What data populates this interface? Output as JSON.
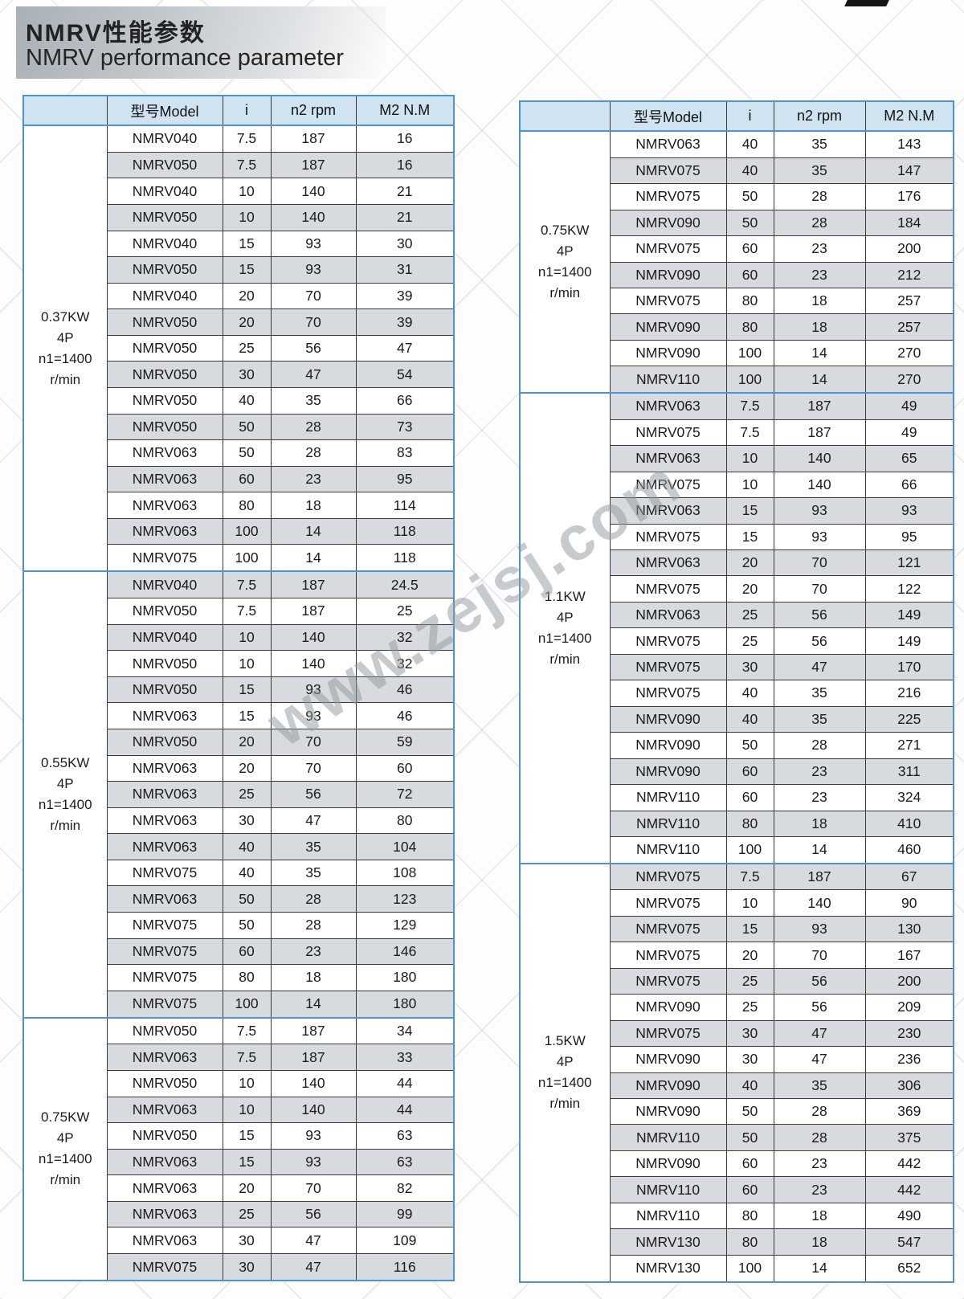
{
  "page": {
    "title_cn": "NMRV性能参数",
    "title_en": "NMRV performance parameter",
    "watermark": "www.zejsj.com"
  },
  "columns": [
    "型号Model",
    "i",
    "n2 rpm",
    "M2 N.M"
  ],
  "colors": {
    "header_bg": "#cfe3f1",
    "border_blue": "#4e92cf",
    "row_shaded": "#d7dade",
    "row_plain": "#ffffff",
    "grid_line": "#3a3a3a",
    "text": "#1b1b1b",
    "watermark_gray": "#919ba2"
  },
  "tables": [
    {
      "name": "left",
      "groups": [
        {
          "label_lines": [
            "0.37KW",
            "4P",
            "n1=1400",
            "r/min"
          ],
          "first_row_shaded": false,
          "rows": [
            [
              "NMRV040",
              "7.5",
              "187",
              "16"
            ],
            [
              "NMRV050",
              "7.5",
              "187",
              "16"
            ],
            [
              "NMRV040",
              "10",
              "140",
              "21"
            ],
            [
              "NMRV050",
              "10",
              "140",
              "21"
            ],
            [
              "NMRV040",
              "15",
              "93",
              "30"
            ],
            [
              "NMRV050",
              "15",
              "93",
              "31"
            ],
            [
              "NMRV040",
              "20",
              "70",
              "39"
            ],
            [
              "NMRV050",
              "20",
              "70",
              "39"
            ],
            [
              "NMRV050",
              "25",
              "56",
              "47"
            ],
            [
              "NMRV050",
              "30",
              "47",
              "54"
            ],
            [
              "NMRV050",
              "40",
              "35",
              "66"
            ],
            [
              "NMRV050",
              "50",
              "28",
              "73"
            ],
            [
              "NMRV063",
              "50",
              "28",
              "83"
            ],
            [
              "NMRV063",
              "60",
              "23",
              "95"
            ],
            [
              "NMRV063",
              "80",
              "18",
              "114"
            ],
            [
              "NMRV063",
              "100",
              "14",
              "118"
            ],
            [
              "NMRV075",
              "100",
              "14",
              "118"
            ]
          ]
        },
        {
          "label_lines": [
            "0.55KW",
            "4P",
            "n1=1400",
            "r/min"
          ],
          "first_row_shaded": true,
          "rows": [
            [
              "NMRV040",
              "7.5",
              "187",
              "24.5"
            ],
            [
              "NMRV050",
              "7.5",
              "187",
              "25"
            ],
            [
              "NMRV040",
              "10",
              "140",
              "32"
            ],
            [
              "NMRV050",
              "10",
              "140",
              "32"
            ],
            [
              "NMRV050",
              "15",
              "93",
              "46"
            ],
            [
              "NMRV063",
              "15",
              "93",
              "46"
            ],
            [
              "NMRV050",
              "20",
              "70",
              "59"
            ],
            [
              "NMRV063",
              "20",
              "70",
              "60"
            ],
            [
              "NMRV063",
              "25",
              "56",
              "72"
            ],
            [
              "NMRV063",
              "30",
              "47",
              "80"
            ],
            [
              "NMRV063",
              "40",
              "35",
              "104"
            ],
            [
              "NMRV075",
              "40",
              "35",
              "108"
            ],
            [
              "NMRV063",
              "50",
              "28",
              "123"
            ],
            [
              "NMRV075",
              "50",
              "28",
              "129"
            ],
            [
              "NMRV075",
              "60",
              "23",
              "146"
            ],
            [
              "NMRV075",
              "80",
              "18",
              "180"
            ],
            [
              "NMRV075",
              "100",
              "14",
              "180"
            ]
          ]
        },
        {
          "label_lines": [
            "0.75KW",
            "4P",
            "n1=1400",
            "r/min"
          ],
          "first_row_shaded": false,
          "rows": [
            [
              "NMRV050",
              "7.5",
              "187",
              "34"
            ],
            [
              "NMRV063",
              "7.5",
              "187",
              "33"
            ],
            [
              "NMRV050",
              "10",
              "140",
              "44"
            ],
            [
              "NMRV063",
              "10",
              "140",
              "44"
            ],
            [
              "NMRV050",
              "15",
              "93",
              "63"
            ],
            [
              "NMRV063",
              "15",
              "93",
              "63"
            ],
            [
              "NMRV063",
              "20",
              "70",
              "82"
            ],
            [
              "NMRV063",
              "25",
              "56",
              "99"
            ],
            [
              "NMRV063",
              "30",
              "47",
              "109"
            ],
            [
              "NMRV075",
              "30",
              "47",
              "116"
            ]
          ]
        }
      ]
    },
    {
      "name": "right",
      "groups": [
        {
          "label_lines": [
            "0.75KW",
            "4P",
            "n1=1400",
            "r/min"
          ],
          "first_row_shaded": false,
          "rows": [
            [
              "NMRV063",
              "40",
              "35",
              "143"
            ],
            [
              "NMRV075",
              "40",
              "35",
              "147"
            ],
            [
              "NMRV075",
              "50",
              "28",
              "176"
            ],
            [
              "NMRV090",
              "50",
              "28",
              "184"
            ],
            [
              "NMRV075",
              "60",
              "23",
              "200"
            ],
            [
              "NMRV090",
              "60",
              "23",
              "212"
            ],
            [
              "NMRV075",
              "80",
              "18",
              "257"
            ],
            [
              "NMRV090",
              "80",
              "18",
              "257"
            ],
            [
              "NMRV090",
              "100",
              "14",
              "270"
            ],
            [
              "NMRV110",
              "100",
              "14",
              "270"
            ]
          ]
        },
        {
          "label_lines": [
            "1.1KW",
            "4P",
            "n1=1400",
            "r/min"
          ],
          "first_row_shaded": true,
          "rows": [
            [
              "NMRV063",
              "7.5",
              "187",
              "49"
            ],
            [
              "NMRV075",
              "7.5",
              "187",
              "49"
            ],
            [
              "NMRV063",
              "10",
              "140",
              "65"
            ],
            [
              "NMRV075",
              "10",
              "140",
              "66"
            ],
            [
              "NMRV063",
              "15",
              "93",
              "93"
            ],
            [
              "NMRV075",
              "15",
              "93",
              "95"
            ],
            [
              "NMRV063",
              "20",
              "70",
              "121"
            ],
            [
              "NMRV075",
              "20",
              "70",
              "122"
            ],
            [
              "NMRV063",
              "25",
              "56",
              "149"
            ],
            [
              "NMRV075",
              "25",
              "56",
              "149"
            ],
            [
              "NMRV075",
              "30",
              "47",
              "170"
            ],
            [
              "NMRV075",
              "40",
              "35",
              "216"
            ],
            [
              "NMRV090",
              "40",
              "35",
              "225"
            ],
            [
              "NMRV090",
              "50",
              "28",
              "271"
            ],
            [
              "NMRV090",
              "60",
              "23",
              "311"
            ],
            [
              "NMRV110",
              "60",
              "23",
              "324"
            ],
            [
              "NMRV110",
              "80",
              "18",
              "410"
            ],
            [
              "NMRV110",
              "100",
              "14",
              "460"
            ]
          ]
        },
        {
          "label_lines": [
            "1.5KW",
            "4P",
            "n1=1400",
            "r/min"
          ],
          "first_row_shaded": true,
          "rows": [
            [
              "NMRV075",
              "7.5",
              "187",
              "67"
            ],
            [
              "NMRV075",
              "10",
              "140",
              "90"
            ],
            [
              "NMRV075",
              "15",
              "93",
              "130"
            ],
            [
              "NMRV075",
              "20",
              "70",
              "167"
            ],
            [
              "NMRV075",
              "25",
              "56",
              "200"
            ],
            [
              "NMRV090",
              "25",
              "56",
              "209"
            ],
            [
              "NMRV075",
              "30",
              "47",
              "230"
            ],
            [
              "NMRV090",
              "30",
              "47",
              "236"
            ],
            [
              "NMRV090",
              "40",
              "35",
              "306"
            ],
            [
              "NMRV090",
              "50",
              "28",
              "369"
            ],
            [
              "NMRV110",
              "50",
              "28",
              "375"
            ],
            [
              "NMRV090",
              "60",
              "23",
              "442"
            ],
            [
              "NMRV110",
              "60",
              "23",
              "442"
            ],
            [
              "NMRV110",
              "80",
              "18",
              "490"
            ],
            [
              "NMRV130",
              "80",
              "18",
              "547"
            ],
            [
              "NMRV130",
              "100",
              "14",
              "652"
            ]
          ]
        }
      ]
    }
  ]
}
